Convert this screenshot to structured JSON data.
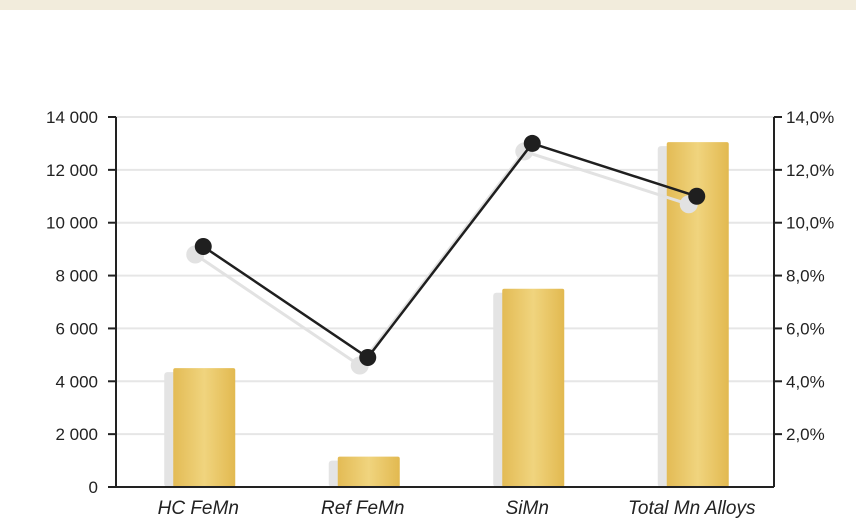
{
  "chart_data": {
    "type": "bar",
    "categories": [
      "HC FeMn",
      "Ref FeMn",
      "SiMn",
      "Total Mn Alloys"
    ],
    "series": [
      {
        "type": "bar",
        "axis": "left",
        "values": [
          4500,
          1150,
          7500,
          13050
        ]
      },
      {
        "type": "line",
        "axis": "right",
        "values": [
          9.1,
          4.9,
          13.0,
          11.0
        ]
      }
    ],
    "left_axis": {
      "ylim": [
        0,
        14000
      ],
      "ticks": [
        0,
        2000,
        4000,
        6000,
        8000,
        10000,
        12000,
        14000
      ],
      "tick_labels": [
        "0",
        "2 000",
        "4 000",
        "6 000",
        "8 000",
        "10 000",
        "12 000",
        "14 000"
      ]
    },
    "right_axis": {
      "ylim": [
        0,
        14
      ],
      "ticks": [
        2,
        4,
        6,
        8,
        10,
        12,
        14
      ],
      "tick_labels": [
        "2,0%",
        "4,0%",
        "6,0%",
        "8,0%",
        "10,0%",
        "12,0%",
        "14,0%"
      ]
    },
    "grid": true,
    "legend": "none",
    "colors": {
      "bar": "#e8c464",
      "bar_highlight": "#f0d47e",
      "bar_shadow": "#e4e4e4",
      "line": "#1f1f1f",
      "marker": "#1f1f1f",
      "grid": "#e6e6e6",
      "axis": "#222222",
      "top_band": "#f2ecdc"
    }
  }
}
